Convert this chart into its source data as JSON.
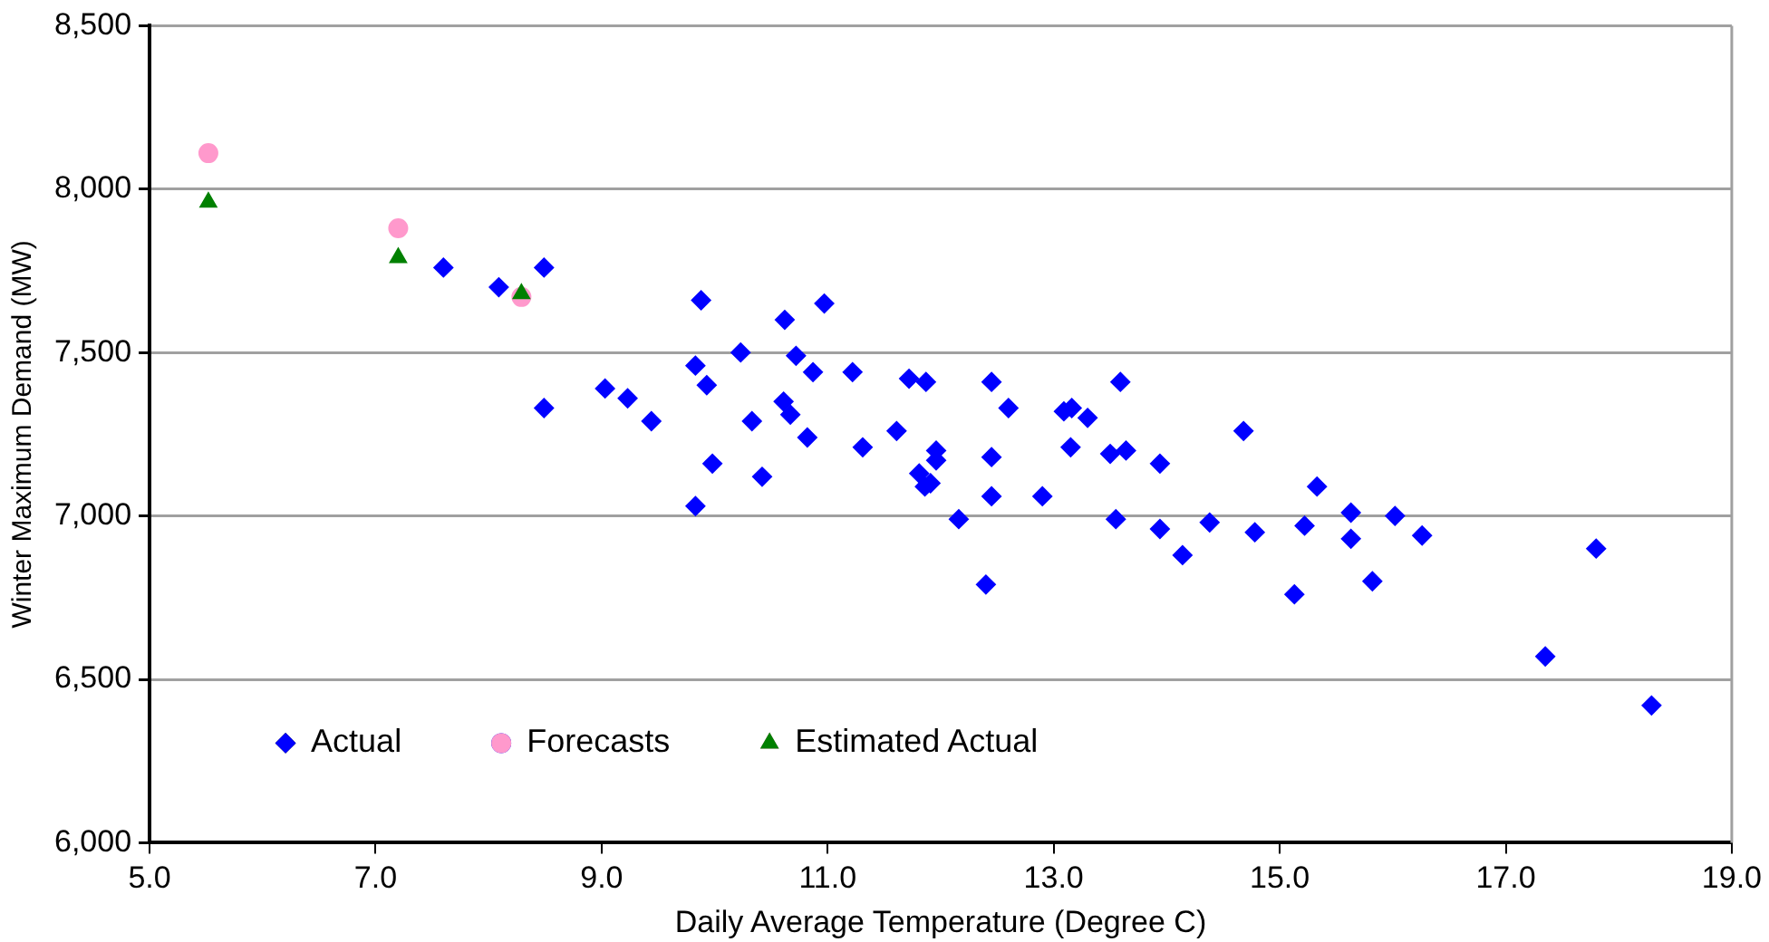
{
  "chart_data": {
    "type": "scatter",
    "xlabel": "Daily Average Temperature (Degree C)",
    "ylabel": "Winter Maximum Demand (MW)",
    "xlim": [
      5,
      19
    ],
    "xticks": [
      {
        "value": 5,
        "label": "5.0"
      },
      {
        "value": 7,
        "label": "7.0"
      },
      {
        "value": 9,
        "label": "9.0"
      },
      {
        "value": 11,
        "label": "11.0"
      },
      {
        "value": 13,
        "label": "13.0"
      },
      {
        "value": 15,
        "label": "15.0"
      },
      {
        "value": 17,
        "label": "17.0"
      },
      {
        "value": 19,
        "label": "19.0"
      }
    ],
    "ylim": [
      6000,
      8500
    ],
    "yticks": [
      {
        "value": 6000,
        "label": "6,000"
      },
      {
        "value": 6500,
        "label": "6,500"
      },
      {
        "value": 7000,
        "label": "7,000"
      },
      {
        "value": 7500,
        "label": "7,500"
      },
      {
        "value": 8000,
        "label": "8,000"
      },
      {
        "value": 8500,
        "label": "8,500"
      }
    ],
    "grid": "y",
    "legend": "bottom left",
    "series": [
      {
        "name": "Actual",
        "color": "#0000ff",
        "marker": "diamond",
        "x": [
          7.6,
          8.09,
          8.49,
          8.49,
          9.03,
          9.23,
          9.44,
          9.83,
          9.83,
          9.88,
          9.93,
          9.98,
          10.23,
          10.33,
          10.42,
          10.62,
          10.72,
          10.61,
          10.67,
          10.87,
          10.82,
          10.97,
          11.22,
          11.31,
          11.61,
          11.72,
          11.87,
          11.96,
          11.96,
          11.81,
          11.86,
          11.91,
          12.16,
          12.4,
          12.45,
          12.45,
          12.45,
          12.6,
          12.9,
          13.09,
          13.16,
          13.15,
          13.3,
          13.5,
          13.59,
          13.64,
          13.55,
          13.94,
          13.94,
          14.14,
          14.38,
          14.68,
          14.78,
          15.13,
          15.22,
          15.33,
          15.63,
          15.63,
          15.82,
          16.02,
          16.26,
          17.35,
          17.8,
          18.29
        ],
        "values": [
          7760,
          7700,
          7760,
          7330,
          7390,
          7360,
          7290,
          7460,
          7030,
          7660,
          7400,
          7160,
          7500,
          7290,
          7120,
          7600,
          7490,
          7350,
          7310,
          7440,
          7240,
          7650,
          7440,
          7210,
          7260,
          7420,
          7410,
          7200,
          7170,
          7130,
          7090,
          7100,
          6990,
          6790,
          7410,
          7180,
          7060,
          7330,
          7060,
          7320,
          7330,
          7210,
          7300,
          7190,
          7410,
          7200,
          6990,
          7160,
          6960,
          6880,
          6980,
          7260,
          6950,
          6760,
          6970,
          7090,
          7010,
          6930,
          6800,
          7000,
          6940,
          6570,
          6900,
          6420
        ]
      },
      {
        "name": "Forecasts",
        "color": "#ff99cc",
        "marker": "circle",
        "x": [
          5.52,
          7.2,
          8.29
        ],
        "values": [
          8110,
          7880,
          7670
        ]
      },
      {
        "name": "Estimated Actual",
        "color": "#008000",
        "marker": "triangle",
        "x": [
          5.52,
          7.2,
          8.29
        ],
        "values": [
          7960,
          7790,
          7680
        ]
      }
    ]
  }
}
